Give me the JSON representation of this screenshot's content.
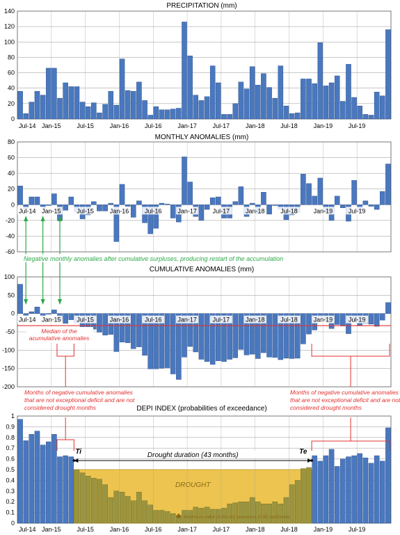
{
  "chart_data": [
    {
      "type": "bar",
      "title": "PRECIPITATION (mm)",
      "ylim": [
        0,
        140
      ],
      "yticks": [
        0,
        20,
        40,
        60,
        80,
        100,
        120,
        140
      ],
      "start_month": "Jul-14",
      "xtick_labels": [
        "Jul-14",
        "Jan-15",
        "Jul-15",
        "Jan-16",
        "Jul-16",
        "Jan-17",
        "Jul-17",
        "Jan-18",
        "Jul-18",
        "Jan-19",
        "Jul-19"
      ],
      "grid": true,
      "values": [
        36,
        7,
        22,
        36,
        31,
        66,
        66,
        27,
        47,
        42,
        42,
        22,
        16,
        21,
        8,
        19,
        36,
        18,
        78,
        37,
        36,
        48,
        24,
        5,
        16,
        12,
        12,
        13,
        14,
        126,
        82,
        31,
        24,
        29,
        69,
        47,
        6,
        6,
        20,
        48,
        39,
        68,
        44,
        59,
        41,
        27,
        69,
        17,
        7,
        8,
        52,
        52,
        46,
        99,
        43,
        47,
        56,
        23,
        71,
        28,
        17,
        6,
        5,
        35,
        30,
        116
      ]
    },
    {
      "type": "bar",
      "title": "MONTHLY ANOMALIES (mm)",
      "ylim": [
        -60,
        80
      ],
      "yticks": [
        -60,
        -40,
        -20,
        0,
        20,
        40,
        60,
        80
      ],
      "start_month": "Jul-14",
      "xtick_labels": [
        "Jul-14",
        "Jan-15",
        "Jul-15",
        "Jan-16",
        "Jul-16",
        "Jan-17",
        "Jul-17",
        "Jan-18",
        "Jul-18",
        "Jan-19",
        "Jul-19"
      ],
      "grid": true,
      "values": [
        24,
        -5,
        10,
        10,
        -6,
        -1,
        14,
        -20,
        -7,
        10,
        -9,
        -18,
        -13,
        4,
        -8,
        -8,
        2,
        -47,
        26,
        -2,
        -16,
        5,
        -23,
        -37,
        -30,
        2,
        1,
        -17,
        -22,
        61,
        29,
        -15,
        -20,
        -6,
        9,
        10,
        -17,
        -17,
        4,
        23,
        -15,
        2,
        -12,
        16,
        -12,
        -1,
        -6,
        -19,
        -13,
        -10,
        39,
        27,
        11,
        34,
        -10,
        -20,
        11,
        -4,
        -21,
        31,
        -8,
        5,
        -2,
        -6,
        17,
        52
      ],
      "annotation": "Negative monthly anomalies after cumulative surpluses, producing restart of the accumulation"
    },
    {
      "type": "bar",
      "title": "CUMULATIVE ANOMALIES (mm)",
      "ylim": [
        -200,
        100
      ],
      "yticks": [
        -200,
        -150,
        -100,
        -50,
        0,
        50,
        100
      ],
      "start_month": "Jul-14",
      "xtick_labels": [
        "Jul-14",
        "Jan-15",
        "Jul-15",
        "Jan-16",
        "Jul-16",
        "Jan-17",
        "Jul-17",
        "Jan-18",
        "Jul-18",
        "Jan-19",
        "Jul-19"
      ],
      "grid": true,
      "median": -33,
      "values": [
        80,
        -5,
        5,
        18,
        -6,
        -2,
        10,
        -20,
        -27,
        -17,
        -26,
        -44,
        -47,
        -43,
        -51,
        -59,
        -57,
        -104,
        -78,
        -80,
        -96,
        -91,
        -114,
        -151,
        -151,
        -149,
        -148,
        -165,
        -180,
        -119,
        -90,
        -105,
        -125,
        -131,
        -139,
        -129,
        -131,
        -125,
        -121,
        -98,
        -113,
        -111,
        -123,
        -107,
        -119,
        -120,
        -126,
        -122,
        -123,
        -122,
        -83,
        -56,
        -45,
        -11,
        -21,
        -41,
        -30,
        -34,
        -55,
        -24,
        -32,
        -27,
        -29,
        -35,
        -18,
        30
      ],
      "annotations": [
        "Median of the\nacumulative anomalies",
        "Months of negative cumulative anomalies\nthat are not exceptional deficit and are not\nconsidered drought months",
        "Months of negative cumulative anomalies\nthat are not exceptional deficit and are not\nconsidered drought months"
      ]
    },
    {
      "type": "bar",
      "title": "DEPI INDEX (probabilities of exceedance)",
      "ylim": [
        0,
        1
      ],
      "yticks": [
        0,
        0.1,
        0.2,
        0.3,
        0.4,
        0.5,
        0.6,
        0.7,
        0.8,
        0.9,
        1
      ],
      "start_month": "Jul-14",
      "xtick_labels": [
        "Jul-14",
        "Jan-15",
        "Jul-15",
        "Jan-16",
        "Jul-16",
        "Jan-17",
        "Jul-17",
        "Jan-18",
        "Jul-18",
        "Jan-19",
        "Jul-19"
      ],
      "grid": true,
      "threshold": 0.5,
      "drought_start_index": 10,
      "drought_end_index": 52,
      "values": [
        0.97,
        0.77,
        0.83,
        0.86,
        0.73,
        0.76,
        0.83,
        0.62,
        0.63,
        0.62,
        0.5,
        0.47,
        0.44,
        0.42,
        0.41,
        0.36,
        0.24,
        0.3,
        0.29,
        0.25,
        0.21,
        0.29,
        0.21,
        0.17,
        0.12,
        0.12,
        0.11,
        0.09,
        0.07,
        0.12,
        0.12,
        0.15,
        0.14,
        0.15,
        0.13,
        0.13,
        0.14,
        0.18,
        0.19,
        0.2,
        0.2,
        0.24,
        0.2,
        0.18,
        0.18,
        0.2,
        0.18,
        0.24,
        0.36,
        0.4,
        0.51,
        0.52,
        0.63,
        0.58,
        0.63,
        0.69,
        0.53,
        0.6,
        0.62,
        0.63,
        0.65,
        0.61,
        0.56,
        0.63,
        0.58,
        0.89
      ],
      "labels": {
        "ti": "Ti",
        "te": "Te",
        "duration": "Drought duration (43 months)",
        "drought": "DROUGHT",
        "max_value": "Maximum value of the dry sequence (0.98 moderate)"
      }
    }
  ],
  "colors": {
    "bar": "#4a78bf",
    "bar_edge": "#27477f",
    "drought_bar": "#9a9440",
    "drought_bar_edge": "#6c6620",
    "drought_fill": "#ecc44f",
    "grid": "#a8a8a8",
    "red": "#e33030",
    "green": "#2ea84a",
    "text": "#000000"
  }
}
